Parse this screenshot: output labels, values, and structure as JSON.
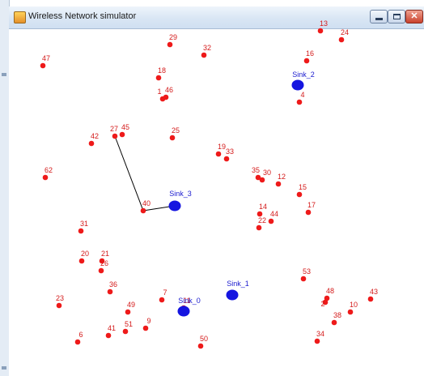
{
  "window": {
    "title": "Wireless Network simulator"
  },
  "window_buttons": {
    "close_glyph": "✕"
  },
  "colors": {
    "node": "#ee1a1a",
    "sink": "#1515e0",
    "node_label": "#d41a1a",
    "sink_label": "#2020d0",
    "link": "#000000"
  },
  "nodes": [
    "13",
    "24",
    "29",
    "32",
    "47",
    "16",
    "18",
    "1",
    "46",
    "4",
    "27",
    "45",
    "42",
    "25",
    "19",
    "33",
    "62",
    "35",
    "30",
    "12",
    "15",
    "40",
    "14",
    "17",
    "44",
    "22",
    "31",
    "20",
    "21",
    "26",
    "36",
    "53",
    "7",
    "48",
    "2",
    "43",
    "23",
    "38",
    "49",
    "9",
    "10",
    "51",
    "41",
    "6",
    "34",
    "50",
    "11"
  ],
  "sinks": [
    "Sink_0",
    "Sink_1",
    "Sink_2",
    "Sink_3"
  ],
  "links": [
    [
      "27",
      "40"
    ],
    [
      "40",
      "Sink_3"
    ]
  ]
}
